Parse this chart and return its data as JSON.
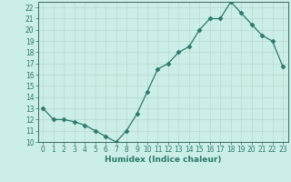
{
  "x": [
    0,
    1,
    2,
    3,
    4,
    5,
    6,
    7,
    8,
    9,
    10,
    11,
    12,
    13,
    14,
    15,
    16,
    17,
    18,
    19,
    20,
    21,
    22,
    23
  ],
  "y": [
    13,
    12,
    12,
    11.8,
    11.5,
    11,
    10.5,
    10,
    11,
    12.5,
    14.5,
    16.5,
    17,
    18,
    18.5,
    20,
    21,
    21,
    22.5,
    21.5,
    20.5,
    19.5,
    19,
    16.7
  ],
  "xlabel": "Humidex (Indice chaleur)",
  "xlim": [
    -0.5,
    23.5
  ],
  "ylim": [
    10,
    22.5
  ],
  "xticks": [
    0,
    1,
    2,
    3,
    4,
    5,
    6,
    7,
    8,
    9,
    10,
    11,
    12,
    13,
    14,
    15,
    16,
    17,
    18,
    19,
    20,
    21,
    22,
    23
  ],
  "yticks": [
    10,
    11,
    12,
    13,
    14,
    15,
    16,
    17,
    18,
    19,
    20,
    21,
    22
  ],
  "line_color": "#2a7a6a",
  "marker": "D",
  "marker_size": 2.5,
  "bg_color": "#cceee8",
  "grid_color": "#b8d8d0",
  "axis_label_color": "#2a7a6a",
  "tick_label_fontsize": 5.5,
  "xlabel_fontsize": 6.5
}
